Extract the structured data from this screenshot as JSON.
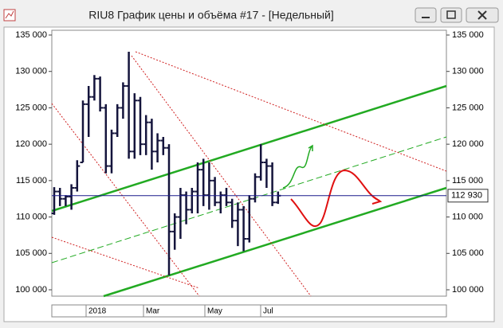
{
  "window": {
    "title": "RIU8 График цены и объёма #17 - [Недельный]"
  },
  "chart_data": {
    "type": "ohlc",
    "color": "#14143c",
    "x_labels": [
      "2018",
      "Mar",
      "May",
      "Jul"
    ],
    "open": [
      110500,
      113500,
      112500,
      112800,
      114000,
      117500,
      125500,
      126500,
      129000,
      125000,
      117000,
      121500,
      125000,
      128000,
      119000,
      126000,
      120000,
      123000,
      119000,
      120500,
      119500,
      108000,
      110000,
      113000,
      111000,
      113500,
      116500,
      113000,
      115000,
      112000,
      113000,
      112000,
      109500,
      111000,
      107000,
      112500,
      115500,
      117500,
      117000,
      112000
    ],
    "high": [
      114100,
      114000,
      113000,
      114500,
      117800,
      126000,
      128000,
      129500,
      129300,
      125500,
      122000,
      125500,
      128500,
      132700,
      127000,
      126500,
      124000,
      123500,
      121500,
      121000,
      120000,
      110500,
      114000,
      113500,
      114000,
      117500,
      118000,
      117500,
      115500,
      113500,
      114000,
      112500,
      112000,
      111500,
      113000,
      116000,
      120000,
      118000,
      117500,
      113500
    ],
    "low": [
      110300,
      111500,
      111500,
      111000,
      113500,
      117500,
      121000,
      126000,
      124500,
      116000,
      116000,
      121000,
      123500,
      118000,
      118000,
      118500,
      118500,
      116500,
      117500,
      118500,
      102000,
      105500,
      107000,
      109000,
      110500,
      110500,
      111500,
      111000,
      111500,
      110500,
      111500,
      108500,
      106000,
      105300,
      106500,
      112000,
      115000,
      114000,
      111500,
      111800
    ],
    "close": [
      113500,
      112500,
      112800,
      114000,
      117000,
      125500,
      126500,
      129000,
      125000,
      117000,
      121500,
      125000,
      128000,
      119000,
      126000,
      120000,
      123000,
      119000,
      120500,
      119500,
      108000,
      110000,
      113000,
      111000,
      113500,
      116500,
      113000,
      115000,
      112000,
      113000,
      112000,
      109500,
      111000,
      107000,
      112500,
      115500,
      117500,
      117000,
      112000,
      112930
    ],
    "last_price": {
      "value": 112930,
      "label": "112 930"
    },
    "ylim": [
      99125,
      135656
    ],
    "yticks": [
      {
        "value": 100000,
        "label": "100 000"
      },
      {
        "value": 105000,
        "label": "105 000"
      },
      {
        "value": 110000,
        "label": "110 000"
      },
      {
        "value": 115000,
        "label": "115 000"
      },
      {
        "value": 120000,
        "label": "120 000"
      },
      {
        "value": 125000,
        "label": "125 000"
      },
      {
        "value": 130000,
        "label": "130 000"
      },
      {
        "value": 135000,
        "label": "135 000"
      }
    ]
  }
}
